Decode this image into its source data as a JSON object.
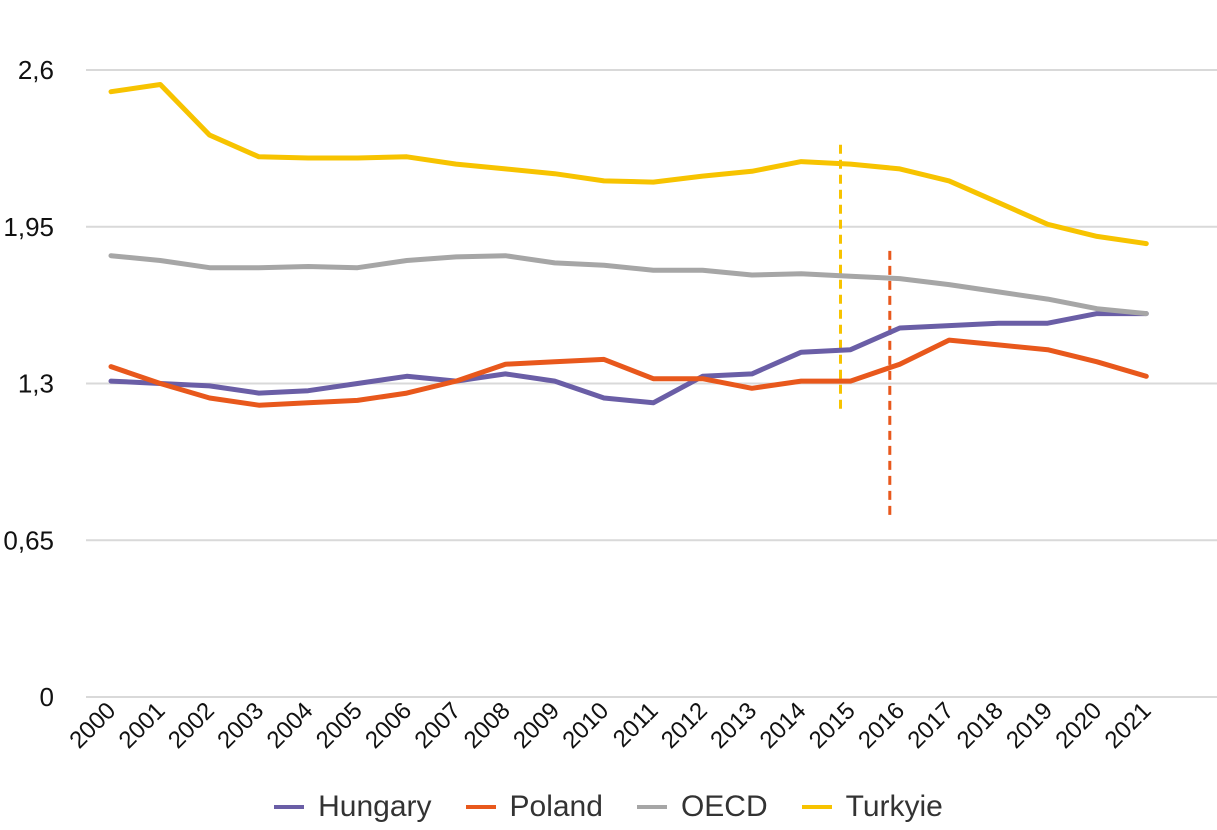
{
  "chart_data": {
    "type": "line",
    "x": [
      "2000",
      "2001",
      "2002",
      "2003",
      "2004",
      "2005",
      "2006",
      "2007",
      "2008",
      "2009",
      "2010",
      "2011",
      "2012",
      "2013",
      "2014",
      "2015",
      "2016",
      "2017",
      "2018",
      "2019",
      "2020",
      "2021"
    ],
    "ylim": [
      0,
      2.6
    ],
    "yticks": [
      "0",
      "0,65",
      "1,3",
      "1,95",
      "2,6"
    ],
    "ytick_values": [
      0,
      0.65,
      1.3,
      1.95,
      2.6
    ],
    "grid": true,
    "legend_position": "bottom",
    "series": [
      {
        "name": "Hungary",
        "color": "#6a5ea6",
        "values": [
          1.31,
          1.3,
          1.29,
          1.26,
          1.27,
          1.3,
          1.33,
          1.31,
          1.34,
          1.31,
          1.24,
          1.22,
          1.33,
          1.34,
          1.43,
          1.44,
          1.53,
          1.54,
          1.55,
          1.55,
          1.59,
          1.59
        ]
      },
      {
        "name": "Poland",
        "color": "#e8581c",
        "values": [
          1.37,
          1.3,
          1.24,
          1.21,
          1.22,
          1.23,
          1.26,
          1.31,
          1.38,
          1.39,
          1.4,
          1.32,
          1.32,
          1.28,
          1.31,
          1.31,
          1.38,
          1.48,
          1.46,
          1.44,
          1.39,
          1.33
        ]
      },
      {
        "name": "OECD",
        "color": "#a6a6a6",
        "values": [
          1.83,
          1.81,
          1.78,
          1.78,
          1.785,
          1.78,
          1.81,
          1.825,
          1.83,
          1.8,
          1.79,
          1.77,
          1.77,
          1.75,
          1.755,
          1.745,
          1.735,
          1.71,
          1.68,
          1.65,
          1.61,
          1.59
        ]
      },
      {
        "name": "Turkyie",
        "color": "#f7c300",
        "values": [
          2.51,
          2.54,
          2.33,
          2.24,
          2.235,
          2.235,
          2.24,
          2.21,
          2.19,
          2.17,
          2.14,
          2.135,
          2.16,
          2.18,
          2.22,
          2.21,
          2.19,
          2.14,
          2.05,
          1.96,
          1.91,
          1.88
        ]
      }
    ],
    "markers": [
      {
        "x": "2015",
        "color": "#f7c300",
        "ymin": 1.19,
        "ymax": 2.29
      },
      {
        "x": "2016",
        "color": "#e8581c",
        "ymin": 0.75,
        "ymax": 1.85
      }
    ]
  }
}
